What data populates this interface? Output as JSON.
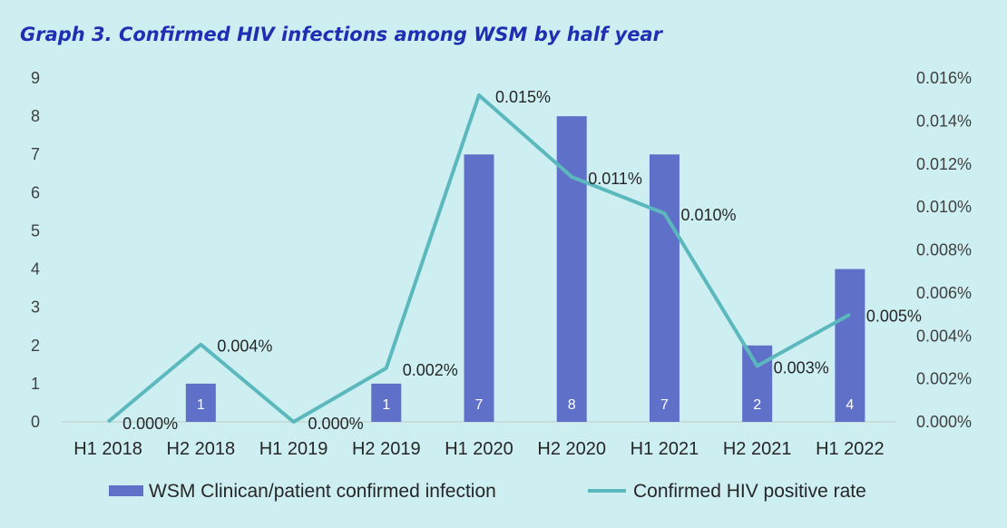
{
  "title": "Graph 3. Confirmed HIV infections among WSM by half year",
  "colors": {
    "background": "#cdeff1",
    "bar": "#5f70c8",
    "line": "#5bb8bd",
    "title": "#1f2fb3"
  },
  "chart_data": {
    "type": "bar",
    "categories": [
      "H1 2018",
      "H2 2018",
      "H1 2019",
      "H2 2019",
      "H1 2020",
      "H2 2020",
      "H1 2021",
      "H2 2021",
      "H1 2022"
    ],
    "series": [
      {
        "name": "WSM Clinican/patient confirmed infection",
        "type": "bar",
        "axis": "left",
        "values": [
          0,
          1,
          0,
          1,
          7,
          8,
          7,
          2,
          4
        ],
        "data_labels": [
          "",
          "1",
          "",
          "1",
          "7",
          "8",
          "7",
          "2",
          "4"
        ]
      },
      {
        "name": "Confirmed HIV positive rate",
        "type": "line",
        "axis": "right",
        "values": [
          0.0,
          0.0036,
          0.0,
          0.0025,
          0.0152,
          0.0114,
          0.0097,
          0.0026,
          0.005
        ],
        "data_labels": [
          "0.000%",
          "0.004%",
          "0.000%",
          "0.002%",
          "0.015%",
          "0.011%",
          "0.010%",
          "0.003%",
          "0.005%"
        ]
      }
    ],
    "y_left": {
      "ylim": [
        0,
        9
      ],
      "ticks": [
        "0",
        "1",
        "2",
        "3",
        "4",
        "5",
        "6",
        "7",
        "8",
        "9"
      ]
    },
    "y_right": {
      "ylim": [
        0,
        0.016
      ],
      "ticks": [
        "0.000%",
        "0.002%",
        "0.004%",
        "0.006%",
        "0.008%",
        "0.010%",
        "0.012%",
        "0.014%",
        "0.016%"
      ]
    },
    "grid": false,
    "legend_position": "bottom"
  }
}
